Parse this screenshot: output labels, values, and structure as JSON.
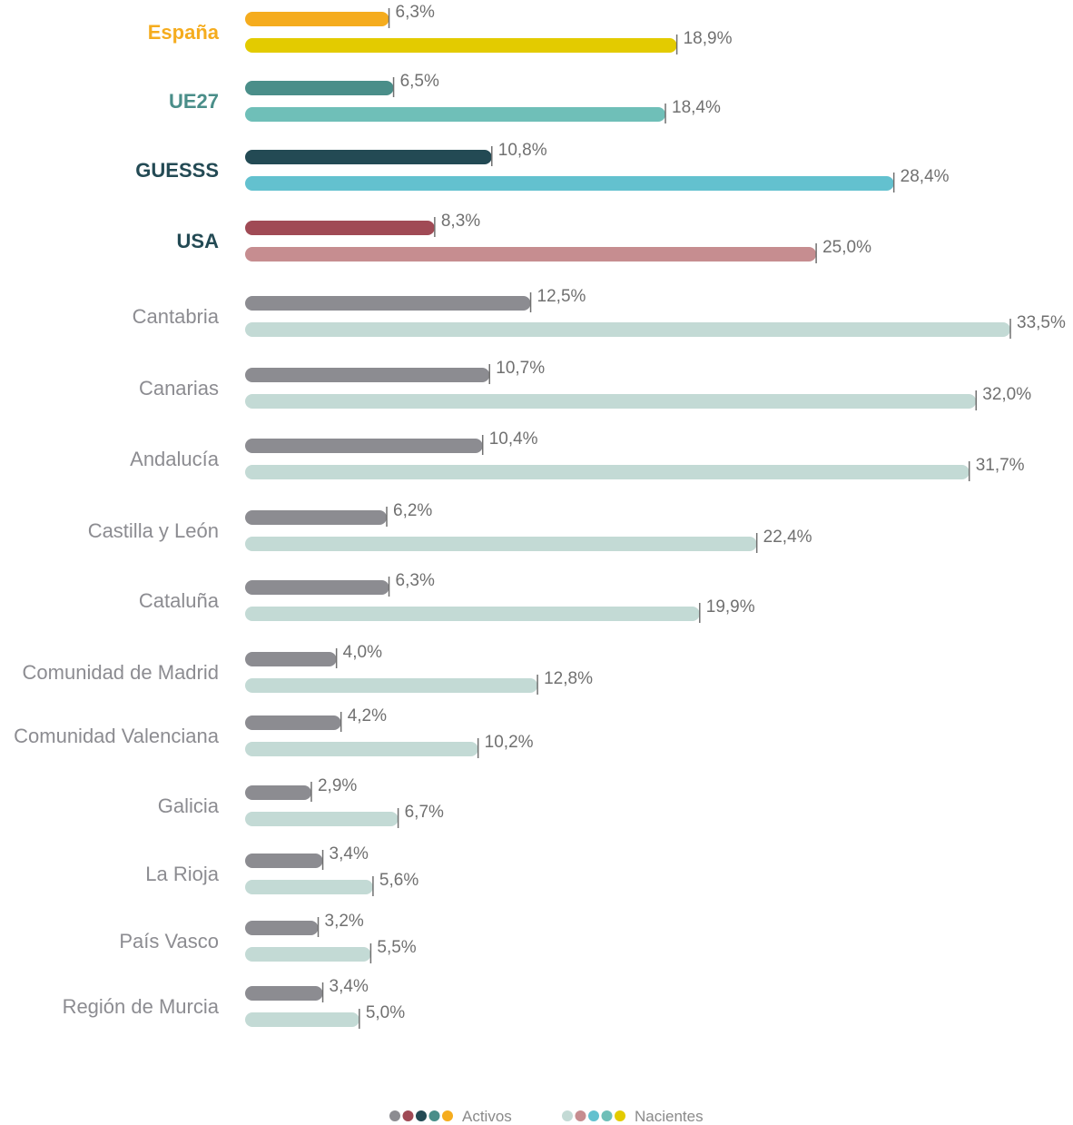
{
  "chart_data": {
    "type": "bar",
    "orientation": "horizontal",
    "value_suffix": "%",
    "categories": [
      "España",
      "UE27",
      "GUESSS",
      "USA",
      "Cantabria",
      "Canarias",
      "Andalucía",
      "Castilla y León",
      "Cataluña",
      "Comunidad de Madrid",
      "Comunidad Valenciana",
      "Galicia",
      "La Rioja",
      "País Vasco",
      "Región de Murcia"
    ],
    "series": [
      {
        "name": "Activos",
        "values": [
          6.3,
          6.5,
          10.8,
          8.3,
          12.5,
          10.7,
          10.4,
          6.2,
          6.3,
          4.0,
          4.2,
          2.9,
          3.4,
          3.2,
          3.4
        ],
        "labels": [
          "6,3%",
          "6,5%",
          "10,8%",
          "8,3%",
          "12,5%",
          "10,7%",
          "10,4%",
          "6,2%",
          "6,3%",
          "4,0%",
          "4,2%",
          "2,9%",
          "3,4%",
          "3,2%",
          "3,4%"
        ]
      },
      {
        "name": "Nacientes",
        "values": [
          18.9,
          18.4,
          28.4,
          25.0,
          33.5,
          32.0,
          31.7,
          22.4,
          19.9,
          12.8,
          10.2,
          6.7,
          5.6,
          5.5,
          5.0
        ],
        "labels": [
          "18,9%",
          "18,4%",
          "28,4%",
          "25,0%",
          "33,5%",
          "32,0%",
          "31,7%",
          "22,4%",
          "19,9%",
          "12,8%",
          "10,2%",
          "6,7%",
          "5,6%",
          "5,5%",
          "5,0%"
        ]
      }
    ],
    "colors": {
      "activos": [
        "#F5AC1E",
        "#4A8E89",
        "#234A54",
        "#A04A55",
        "#8C8C91",
        "#8C8C91",
        "#8C8C91",
        "#8C8C91",
        "#8C8C91",
        "#8C8C91",
        "#8C8C91",
        "#8C8C91",
        "#8C8C91",
        "#8C8C91",
        "#8C8C91"
      ],
      "nacientes": [
        "#E3CB00",
        "#6FBFB8",
        "#63C1CF",
        "#C68D90",
        "#C3DAD5",
        "#C3DAD5",
        "#C3DAD5",
        "#C3DAD5",
        "#C3DAD5",
        "#C3DAD5",
        "#C3DAD5",
        "#C3DAD5",
        "#C3DAD5",
        "#C3DAD5",
        "#C3DAD5"
      ],
      "category_labels": [
        "#F5AC1E",
        "#4A8E89",
        "#234A54",
        "#234A54",
        "#8C8C91",
        "#8C8C91",
        "#8C8C91",
        "#8C8C91",
        "#8C8C91",
        "#8C8C91",
        "#8C8C91",
        "#8C8C91",
        "#8C8C91",
        "#8C8C91",
        "#8C8C91"
      ]
    },
    "bold_categories": [
      0,
      1,
      2,
      3
    ],
    "legend": {
      "position": "bottom-center",
      "items": [
        {
          "label": "Activos",
          "dot_colors": [
            "#8C8C91",
            "#A04A55",
            "#234A54",
            "#4A8E89",
            "#F5AC1E"
          ]
        },
        {
          "label": "Nacientes",
          "dot_colors": [
            "#C3DAD5",
            "#C68D90",
            "#63C1CF",
            "#6FBFB8",
            "#E3CB00"
          ]
        }
      ]
    },
    "xlim": [
      0,
      33.5
    ],
    "grid": false
  }
}
